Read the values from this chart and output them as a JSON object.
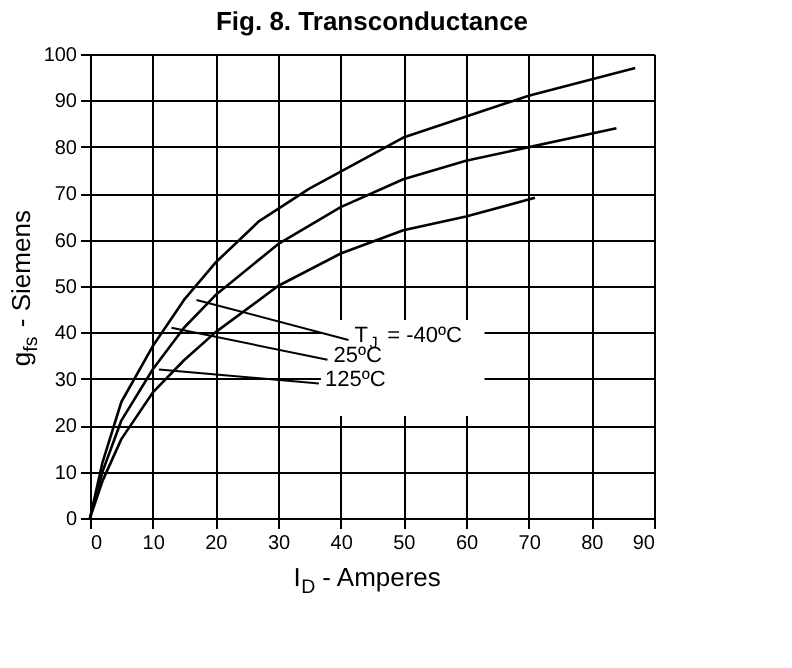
{
  "chart_data": {
    "type": "line",
    "title": "Fig. 8. Transconductance",
    "xlabel": "I$_{D}$ - Amperes",
    "ylabel": "g$_{fs}$ - Siemens",
    "series": [
      {
        "color": "#000000",
        "x": [
          0,
          2,
          5,
          10,
          15,
          20,
          27,
          35,
          50,
          70,
          87
        ],
        "values": [
          0,
          12,
          25,
          37,
          47,
          55,
          64,
          71,
          82,
          91,
          97
        ]
      },
      {
        "color": "#000000",
        "x": [
          0,
          2,
          5,
          10,
          15,
          20,
          30,
          40,
          50,
          60,
          84
        ],
        "values": [
          0,
          10,
          21,
          32,
          41,
          48,
          59,
          67,
          73,
          77,
          84
        ]
      },
      {
        "color": "#000000",
        "x": [
          0,
          2,
          5,
          10,
          15,
          20,
          30,
          40,
          50,
          60,
          71
        ],
        "values": [
          0,
          8,
          17,
          27,
          34,
          40,
          50,
          57,
          62,
          65,
          69
        ]
      }
    ],
    "annotations": [
      {
        "text": "T$_{J}$ = -40ºC",
        "x": 17,
        "y": 47
      },
      {
        "text": "25ºC",
        "x": 13,
        "y": 41
      },
      {
        "text": "125ºC",
        "x": 11,
        "y": 32
      }
    ],
    "xlim": [
      0,
      90
    ],
    "xticks": [
      0,
      10,
      20,
      30,
      40,
      50,
      60,
      70,
      80,
      90
    ],
    "ylim": [
      0,
      100
    ],
    "yticks": [
      0,
      10,
      20,
      30,
      40,
      50,
      60,
      70,
      80,
      90,
      100
    ],
    "grid": true,
    "marker": "none",
    "line_style": "solid"
  }
}
